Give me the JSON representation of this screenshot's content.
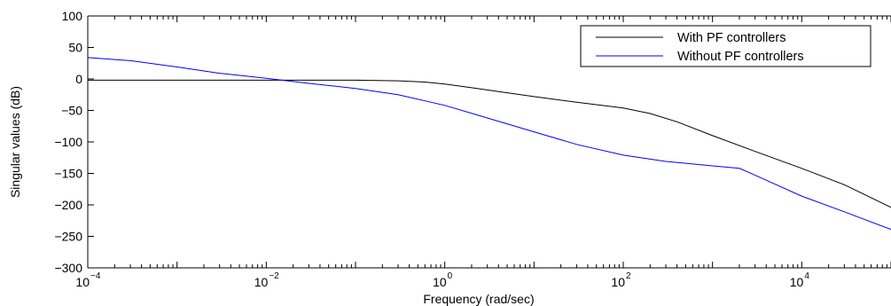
{
  "chart_data": {
    "type": "line",
    "title": "",
    "xlabel": "Frequency  (rad/sec)",
    "ylabel": "Singular values (dB)",
    "xscale": "log",
    "xlim": [
      0.0001,
      100000
    ],
    "ylim": [
      -300,
      100
    ],
    "xticks": [
      {
        "base": "10",
        "exp": "−4",
        "value": 0.0001
      },
      {
        "base": "10",
        "exp": "−2",
        "value": 0.01
      },
      {
        "base": "10",
        "exp": "0",
        "value": 1
      },
      {
        "base": "10",
        "exp": "2",
        "value": 100
      },
      {
        "base": "10",
        "exp": "4",
        "value": 10000
      }
    ],
    "yticks": [
      {
        "label": "100",
        "value": 100
      },
      {
        "label": "50",
        "value": 50
      },
      {
        "label": "0",
        "value": 0
      },
      {
        "label": "−50",
        "value": -50
      },
      {
        "label": "−100",
        "value": -100
      },
      {
        "label": "−150",
        "value": -150
      },
      {
        "label": "−200",
        "value": -200
      },
      {
        "label": "−250",
        "value": -250
      },
      {
        "label": "−300",
        "value": -300
      }
    ],
    "grid": false,
    "legend_position": "top-right",
    "series": [
      {
        "name": "With PF controllers",
        "color": "#000000",
        "points": [
          [
            0.0001,
            -2
          ],
          [
            0.001,
            -2
          ],
          [
            0.01,
            -2
          ],
          [
            0.1,
            -2
          ],
          [
            0.3,
            -3
          ],
          [
            0.6,
            -5
          ],
          [
            1,
            -8
          ],
          [
            2,
            -14
          ],
          [
            5,
            -22
          ],
          [
            10,
            -28
          ],
          [
            30,
            -37
          ],
          [
            100,
            -46
          ],
          [
            200,
            -55
          ],
          [
            400,
            -68
          ],
          [
            1000,
            -90
          ],
          [
            3000,
            -115
          ],
          [
            10000,
            -142
          ],
          [
            30000,
            -168
          ],
          [
            100000,
            -204
          ]
        ]
      },
      {
        "name": "Without PF controllers",
        "color": "#0000ff",
        "points": [
          [
            0.0001,
            34
          ],
          [
            0.0003,
            29
          ],
          [
            0.001,
            19
          ],
          [
            0.003,
            9
          ],
          [
            0.01,
            1
          ],
          [
            0.03,
            -7
          ],
          [
            0.1,
            -15
          ],
          [
            0.3,
            -25
          ],
          [
            1,
            -42
          ],
          [
            3,
            -62
          ],
          [
            10,
            -84
          ],
          [
            30,
            -104
          ],
          [
            100,
            -121
          ],
          [
            300,
            -131
          ],
          [
            1000,
            -138
          ],
          [
            2000,
            -142
          ],
          [
            2800,
            -151
          ],
          [
            5000,
            -167
          ],
          [
            10000,
            -186
          ],
          [
            30000,
            -211
          ],
          [
            100000,
            -239
          ]
        ]
      }
    ]
  }
}
